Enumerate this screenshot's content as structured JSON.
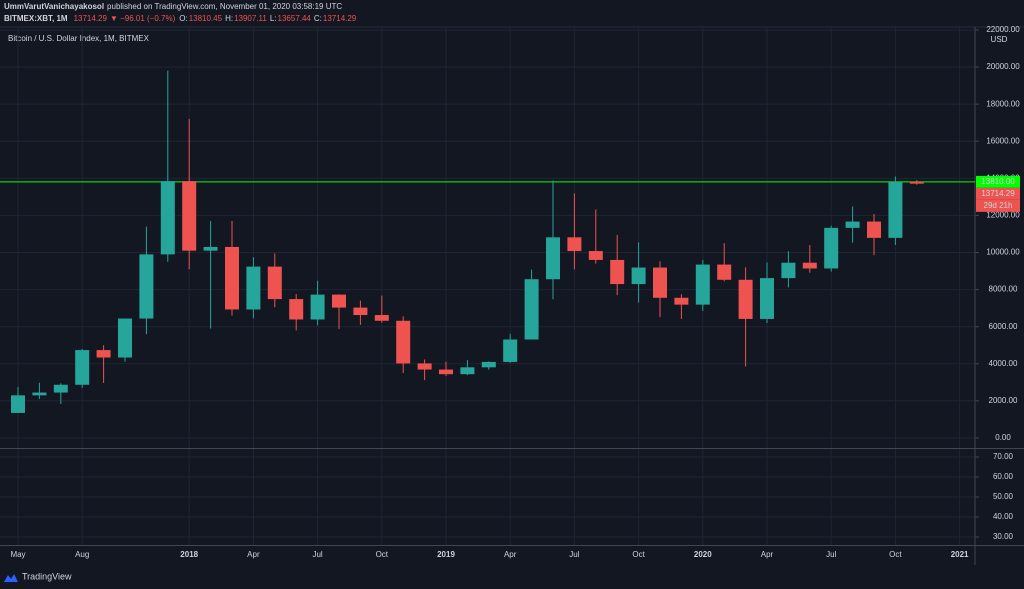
{
  "header": {
    "author": "UmmVarutVanichayakosol",
    "published": "published on TradingView.com, November 01, 2020 03:58:19 UTC",
    "symbol": "BITMEX:XBT, 1M",
    "change": "▼ −96.01 (−0.7%)",
    "ohlc_labels": [
      "O:",
      "H:",
      "L:",
      "C:"
    ]
  },
  "chart_data": {
    "type": "candlestick",
    "title": "Bitcoin / U.S. Dollar Index, 1M, BITMEX",
    "categories": [
      "May",
      null,
      null,
      "Aug",
      null,
      null,
      null,
      null,
      "2018",
      null,
      null,
      "Apr",
      null,
      null,
      "Jul",
      null,
      null,
      "Oct",
      null,
      null,
      "2019",
      null,
      null,
      "Apr",
      null,
      null,
      "Jul",
      null,
      null,
      "Oct",
      null,
      null,
      "2020",
      null,
      null,
      "Apr",
      null,
      null,
      "Jul",
      null,
      null,
      "Oct",
      null,
      null,
      "2021"
    ],
    "open": [
      1350,
      2300,
      2450,
      2870,
      4740,
      4340,
      6440,
      9900,
      13850,
      10100,
      10300,
      6930,
      9240,
      7490,
      6390,
      7730,
      7030,
      6630,
      6320,
      4020,
      3690,
      3440,
      3810,
      4100,
      5310,
      8560,
      10820,
      10080,
      9600,
      8300,
      9190,
      7560,
      7190,
      9350,
      8530,
      6420,
      8620,
      9450,
      9140,
      11330,
      11670,
      10790,
      13810.45,
      null,
      null
    ],
    "high": [
      2750,
      2980,
      2950,
      4800,
      5000,
      6450,
      11400,
      19800,
      17200,
      11700,
      11700,
      9750,
      9950,
      7760,
      8480,
      7750,
      7410,
      7680,
      6560,
      4230,
      4110,
      4200,
      4130,
      5620,
      9080,
      13880,
      13190,
      12320,
      10950,
      10550,
      9520,
      7750,
      9600,
      10500,
      9200,
      9470,
      10070,
      10400,
      11450,
      12480,
      12080,
      14100,
      13907.11,
      null,
      null
    ],
    "low": [
      1350,
      2100,
      1830,
      2700,
      2970,
      4110,
      5600,
      9500,
      9100,
      5900,
      6600,
      6450,
      7050,
      5800,
      6070,
      5880,
      6100,
      6220,
      3500,
      3120,
      3340,
      3390,
      3680,
      4050,
      5330,
      7480,
      9090,
      9400,
      7700,
      7300,
      6520,
      6420,
      6850,
      8450,
      3850,
      6200,
      8120,
      8910,
      8970,
      10530,
      9850,
      10410,
      13657.44,
      null,
      null
    ],
    "close": [
      2300,
      2450,
      2870,
      4740,
      4340,
      6440,
      9900,
      13850,
      10100,
      10300,
      6930,
      9240,
      7490,
      6390,
      7730,
      7030,
      6630,
      6320,
      4020,
      3690,
      3440,
      3810,
      4100,
      5310,
      8560,
      10820,
      10080,
      9600,
      8300,
      9190,
      7560,
      7190,
      9350,
      8530,
      6420,
      8620,
      9450,
      9140,
      11330,
      11670,
      10790,
      13810,
      13714.29,
      null,
      null
    ],
    "up_color": "#26a69a",
    "down_color": "#ef5350",
    "ylim": [
      -540,
      22160
    ],
    "yticks": [
      {
        "value": 0,
        "label": "0.00"
      },
      {
        "value": 2000,
        "label": "2000.00"
      },
      {
        "value": 4000,
        "label": "4000.00"
      },
      {
        "value": 6000,
        "label": "6000.00"
      },
      {
        "value": 8000,
        "label": "8000.00"
      },
      {
        "value": 10000,
        "label": "10000.00"
      },
      {
        "value": 12000,
        "label": "12000.00"
      },
      {
        "value": 14000,
        "label": "14000.00"
      },
      {
        "value": 16000,
        "label": "16000.00"
      },
      {
        "value": 18000,
        "label": "18000.00"
      },
      {
        "value": 20000,
        "label": "20000.00"
      },
      {
        "value": 22000,
        "label": "22000.00"
      }
    ],
    "y_unit": "USD",
    "grid": true,
    "hline": {
      "value": 13810,
      "label": "13810.00",
      "color": "#00ff00"
    },
    "countdown": "29d 21h",
    "lower_pane": {
      "ylim": [
        26,
        74
      ],
      "yticks": [
        {
          "value": 30,
          "label": "30.00"
        },
        {
          "value": 40,
          "label": "40.00"
        },
        {
          "value": 50,
          "label": "50.00"
        },
        {
          "value": 60,
          "label": "60.00"
        },
        {
          "value": 70,
          "label": "70.00"
        }
      ]
    }
  },
  "footer": {
    "brand": "TradingView"
  }
}
